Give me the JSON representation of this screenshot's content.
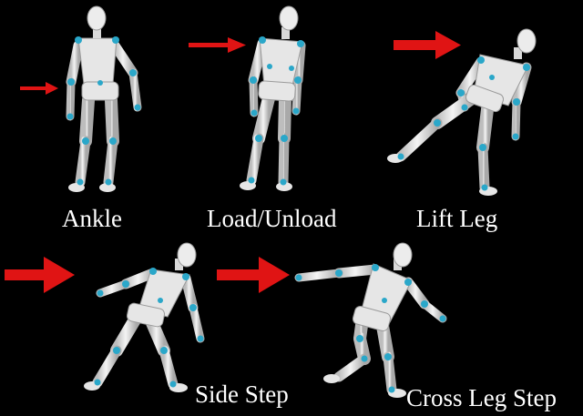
{
  "colors": {
    "background": "#000000",
    "arrow": "#e01414",
    "body": "#e8e8e8",
    "body_shade": "#b8b8b8",
    "joint": "#2aa7c9",
    "label": "#ffffff"
  },
  "figures": [
    {
      "id": "ankle",
      "label": "Ankle",
      "arrow": "small-arrow-icon"
    },
    {
      "id": "load-unload",
      "label": "Load/Unload",
      "arrow": "arrow-icon"
    },
    {
      "id": "lift-leg",
      "label": "Lift Leg",
      "arrow": "arrow-icon"
    },
    {
      "id": "side-step",
      "label": "Side Step",
      "arrow": "large-arrow-icon"
    },
    {
      "id": "cross-leg-step",
      "label": "Cross Leg Step",
      "arrow": "large-arrow-icon"
    }
  ]
}
